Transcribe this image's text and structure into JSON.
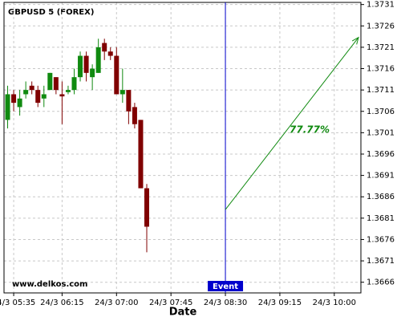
{
  "chart_data": {
    "type": "candlestick",
    "title": "GBPUSD 5 (FOREX)",
    "xlabel": "Date",
    "watermark": "www.delkos.com",
    "up_color": "#108a10",
    "down_color": "#800000",
    "x": [
      330,
      335,
      340,
      345,
      350,
      355,
      360,
      365,
      370,
      375,
      380,
      385,
      390,
      395,
      400,
      405,
      410,
      415,
      420,
      425,
      430,
      435,
      440,
      445
    ],
    "open": [
      1.3704,
      1.371,
      1.3707,
      1.371,
      1.3712,
      1.3711,
      1.3709,
      1.3711,
      1.3714,
      1.371,
      1.37105,
      1.3711,
      1.3714,
      1.3719,
      1.3714,
      1.3715,
      1.3722,
      1.372,
      1.3719,
      1.371,
      1.3711,
      1.3707,
      1.3704,
      1.3688
    ],
    "high": [
      1.3712,
      1.3711,
      1.3711,
      1.3713,
      1.3713,
      1.3712,
      1.3712,
      1.3715,
      1.3714,
      1.3713,
      1.3712,
      1.3716,
      1.372,
      1.372,
      1.3717,
      1.3723,
      1.3723,
      1.3721,
      1.3721,
      1.3716,
      1.3711,
      1.3708,
      1.3704,
      1.3689
    ],
    "low": [
      1.3702,
      1.3706,
      1.3705,
      1.3709,
      1.371,
      1.3707,
      1.3707,
      1.3711,
      1.371,
      1.3703,
      1.371,
      1.371,
      1.3713,
      1.3713,
      1.3711,
      1.3715,
      1.3718,
      1.3718,
      1.371,
      1.3708,
      1.3703,
      1.3702,
      1.3688,
      1.3673
    ],
    "close": [
      1.371,
      1.3708,
      1.3709,
      1.3711,
      1.3711,
      1.3708,
      1.371,
      1.3715,
      1.3711,
      1.37095,
      1.3711,
      1.3714,
      1.3719,
      1.3715,
      1.3716,
      1.3721,
      1.372,
      1.3719,
      1.371,
      1.3711,
      1.3706,
      1.3703,
      1.3688,
      1.3679
    ],
    "xlim": [
      327,
      622
    ],
    "ylim": [
      1.36635,
      1.37315
    ],
    "xticks": [
      {
        "value": 335,
        "label": "24/3 05:35"
      },
      {
        "value": 375,
        "label": "24/3 06:15"
      },
      {
        "value": 420,
        "label": "24/3 07:00"
      },
      {
        "value": 465,
        "label": "24/3 07:45"
      },
      {
        "value": 510,
        "label": "24/3 08:30"
      },
      {
        "value": 555,
        "label": "24/3 09:15"
      },
      {
        "value": 600,
        "label": "24/3 10:00"
      }
    ],
    "yticks": [
      1.3666,
      1.3671,
      1.3676,
      1.3681,
      1.3686,
      1.3691,
      1.3696,
      1.3701,
      1.3706,
      1.3711,
      1.3716,
      1.3721,
      1.3726,
      1.3731
    ],
    "grid": true,
    "event": {
      "x": 510,
      "label": "Event",
      "color": "#0000cc"
    },
    "arrow": {
      "x": [
        510,
        620
      ],
      "y": [
        1.3683,
        1.37233
      ],
      "label": "77.77%",
      "color": "#108a10"
    }
  }
}
